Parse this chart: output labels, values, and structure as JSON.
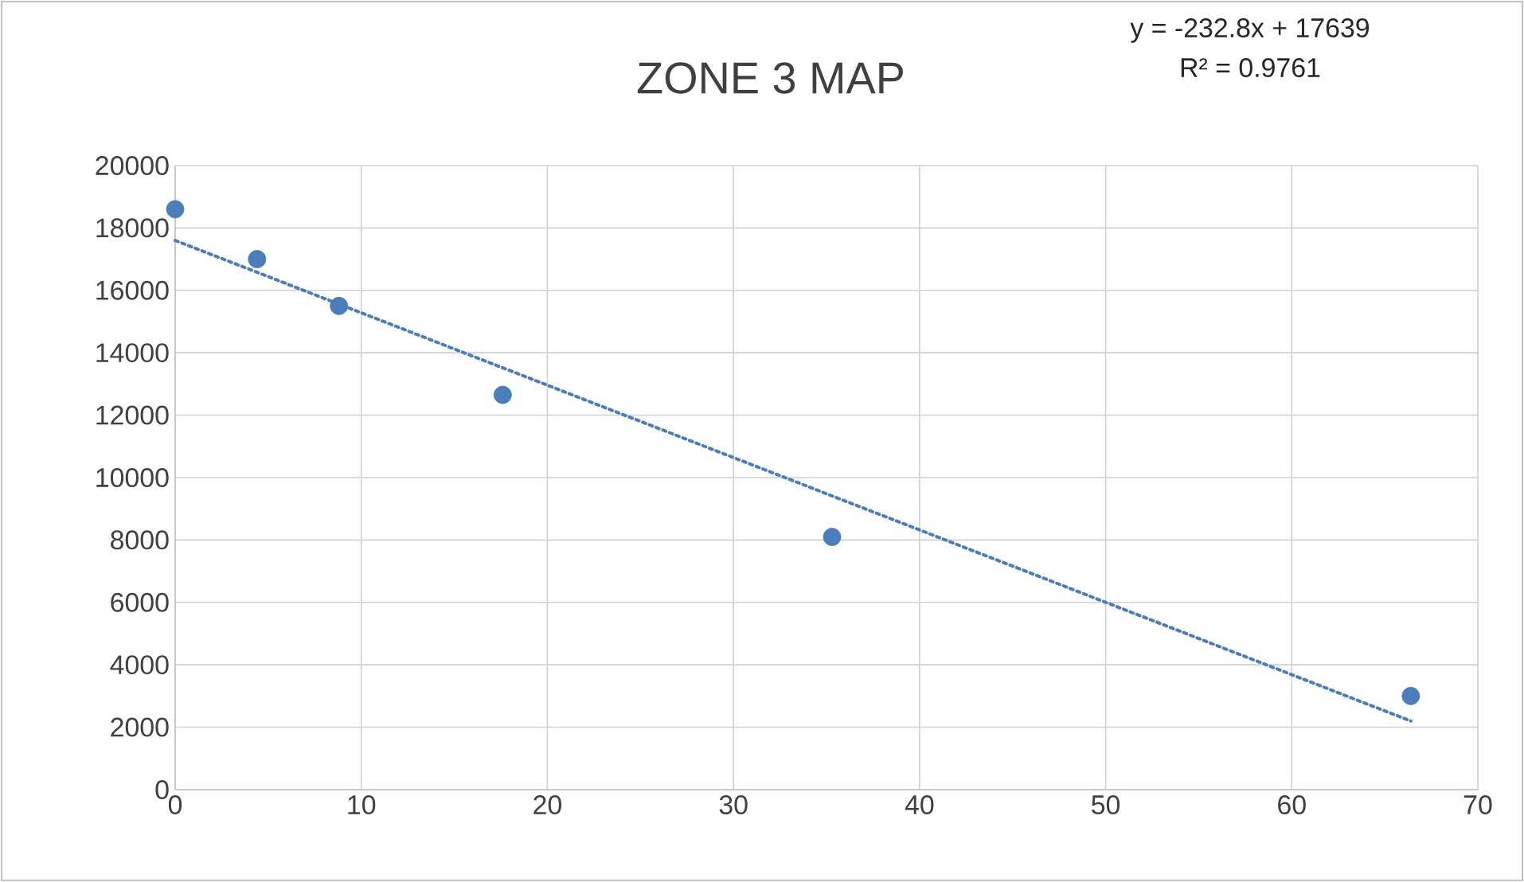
{
  "chart_data": {
    "type": "scatter",
    "title": "ZONE 3 MAP",
    "annotations": [
      "y = -232.8x + 17639",
      "R² = 0.9761"
    ],
    "xlim": [
      0,
      70
    ],
    "xticks": [
      0,
      10,
      20,
      30,
      40,
      50,
      60,
      70
    ],
    "ylim": [
      0,
      20000
    ],
    "yticks": [
      0,
      2000,
      4000,
      6000,
      8000,
      10000,
      12000,
      14000,
      16000,
      18000,
      20000
    ],
    "grid": true,
    "series": [
      {
        "marker": "circle",
        "color": "#4a7ebb",
        "x": [
          0,
          4.4,
          8.8,
          17.6,
          35.3,
          66.4
        ],
        "values": [
          18600,
          17000,
          15500,
          12650,
          8100,
          3000
        ]
      },
      {
        "type": "line",
        "marker": "none",
        "line_style": "dotted",
        "color": "#4a7ebb",
        "x": [
          0,
          66.4
        ],
        "values": [
          17600,
          2200
        ]
      }
    ]
  }
}
